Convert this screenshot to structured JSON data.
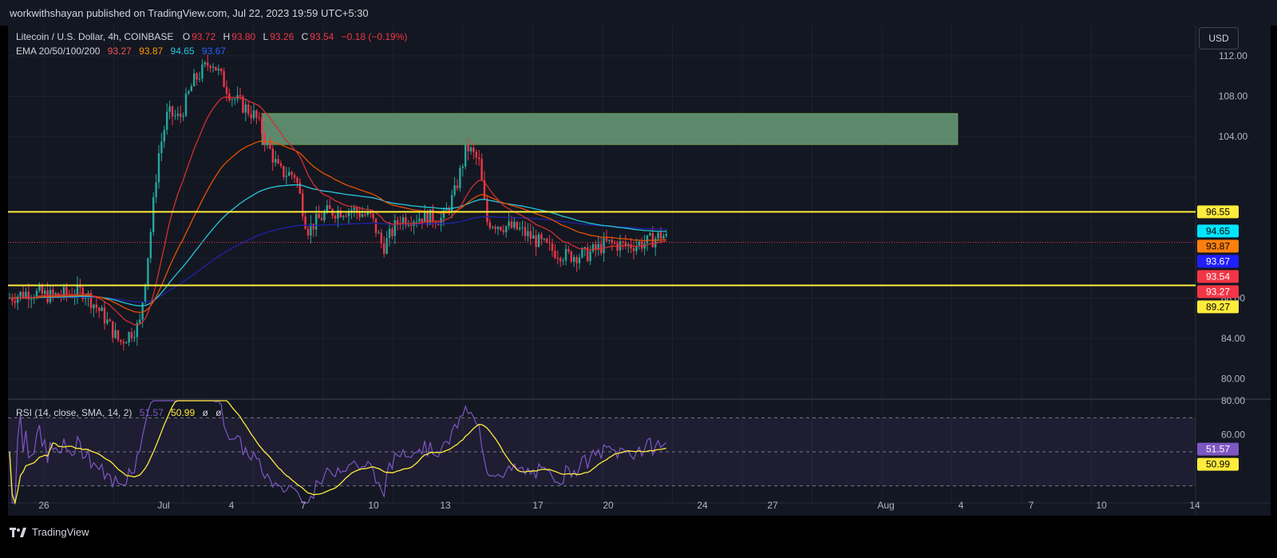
{
  "header": {
    "published_text": "workwithshayan published on TradingView.com, Jul 22, 2023 19:59 UTC+5:30"
  },
  "symbol_legend": {
    "name": "Litecoin / U.S. Dollar, 4h, COINBASE",
    "o_label": "O",
    "o_value": "93.72",
    "h_label": "H",
    "h_value": "93.80",
    "l_label": "L",
    "l_value": "93.26",
    "c_label": "C",
    "c_value": "93.54",
    "change": "−0.18 (−0.19%)"
  },
  "ema_legend": {
    "label": "EMA 20/50/100/200",
    "v20": "93.27",
    "v50": "93.87",
    "v100": "94.65",
    "v200": "93.67"
  },
  "rsi_legend": {
    "label": "RSI (14, close, SMA, 14, 2)",
    "rsi": "51.57",
    "sma": "50.99",
    "extra1": "ø",
    "extra2": "ø"
  },
  "currency_button": "USD",
  "price_axis": {
    "ticks": [
      "112.00",
      "108.00",
      "104.00",
      "88.00",
      "84.00",
      "80.00"
    ],
    "badges": [
      {
        "text": "96.55",
        "bg": "#ffeb3b",
        "fg": "#000000"
      },
      {
        "text": "94.65",
        "bg": "#00e5ff",
        "fg": "#000000"
      },
      {
        "text": "93.87",
        "bg": "#ff7f0e",
        "fg": "#000000"
      },
      {
        "text": "93.67",
        "bg": "#1f1fff",
        "fg": "#ffffff"
      },
      {
        "text": "93.54",
        "bg": "#f23645",
        "fg": "#ffffff"
      },
      {
        "text": "93.27",
        "bg": "#f23645",
        "fg": "#ffffff"
      },
      {
        "text": "89.27",
        "bg": "#ffeb3b",
        "fg": "#000000"
      }
    ]
  },
  "rsi_axis": {
    "ticks": [
      "80.00",
      "60.00"
    ],
    "badges": [
      {
        "text": "51.57",
        "bg": "#7e57c2",
        "fg": "#ffffff"
      },
      {
        "text": "50.99",
        "bg": "#ffeb3b",
        "fg": "#000000"
      }
    ]
  },
  "time_axis": {
    "labels": [
      "26",
      "Jul",
      "4",
      "7",
      "10",
      "13",
      "17",
      "20",
      "24",
      "27",
      "Aug",
      "4",
      "7",
      "10",
      "14"
    ]
  },
  "footer": {
    "brand": "TradingView"
  },
  "colors": {
    "background": "#131722",
    "up": "#26a69a",
    "down": "#f23645",
    "ema20": "#d32f2f",
    "ema50": "#e65100",
    "ema100": "#26c6da",
    "ema200": "#1e22aa",
    "hline": "#ffeb3b",
    "zone": "#6a9e78",
    "rsi": "#7e57c2",
    "rsi_sma": "#ffeb3b"
  },
  "chart_data": {
    "type": "candlestick",
    "symbol": "Litecoin / U.S. Dollar",
    "interval": "4h",
    "ylim": [
      78,
      115
    ],
    "horizontal_levels": [
      96.55,
      89.27
    ],
    "supply_zone": [
      103.2,
      106.3
    ],
    "last_price": 93.54,
    "ema": {
      "20": 93.27,
      "50": 93.87,
      "100": 94.65,
      "200": 93.67
    },
    "rsi": {
      "value": 51.57,
      "sma": 50.99,
      "bands": [
        70,
        50,
        30
      ],
      "ylim": [
        20,
        80
      ]
    },
    "x_labels": [
      "26",
      "Jul",
      "4",
      "7",
      "10",
      "13",
      "17",
      "20",
      "24",
      "27",
      "Aug",
      "4",
      "7",
      "10",
      "14"
    ]
  }
}
